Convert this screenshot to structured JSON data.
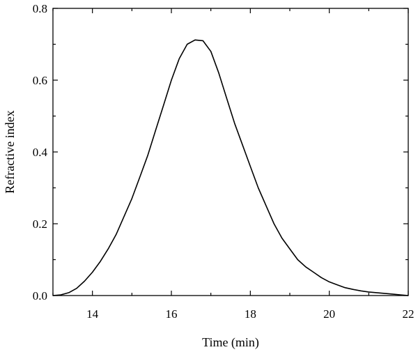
{
  "chart_data": {
    "type": "line",
    "title": "",
    "xlabel": "Time (min)",
    "ylabel": "Refractive index",
    "xlim": [
      13,
      22
    ],
    "ylim": [
      0,
      0.8
    ],
    "xticks": [
      14,
      16,
      18,
      20,
      22
    ],
    "xtick_labels": [
      "14",
      "16",
      "18",
      "20",
      "22"
    ],
    "yticks": [
      0.0,
      0.2,
      0.4,
      0.6,
      0.8
    ],
    "ytick_labels": [
      "0.0",
      "0.2",
      "0.4",
      "0.6",
      "0.8"
    ],
    "grid": false,
    "series": [
      {
        "x": [
          13.0,
          13.2,
          13.4,
          13.6,
          13.8,
          14.0,
          14.2,
          14.4,
          14.6,
          14.8,
          15.0,
          15.2,
          15.4,
          15.6,
          15.8,
          16.0,
          16.2,
          16.4,
          16.6,
          16.8,
          17.0,
          17.2,
          17.4,
          17.6,
          17.8,
          18.0,
          18.2,
          18.4,
          18.6,
          18.8,
          19.0,
          19.2,
          19.4,
          19.6,
          19.8,
          20.0,
          20.2,
          20.4,
          20.6,
          20.8,
          21.0,
          21.2,
          21.4,
          21.6,
          21.8,
          22.0
        ],
        "y": [
          0.0,
          0.002,
          0.008,
          0.02,
          0.04,
          0.065,
          0.095,
          0.13,
          0.17,
          0.22,
          0.27,
          0.33,
          0.39,
          0.46,
          0.53,
          0.6,
          0.66,
          0.7,
          0.712,
          0.71,
          0.68,
          0.62,
          0.55,
          0.48,
          0.42,
          0.36,
          0.3,
          0.25,
          0.2,
          0.16,
          0.13,
          0.1,
          0.08,
          0.065,
          0.05,
          0.038,
          0.03,
          0.022,
          0.017,
          0.013,
          0.01,
          0.008,
          0.006,
          0.004,
          0.002,
          0.0
        ]
      }
    ]
  }
}
